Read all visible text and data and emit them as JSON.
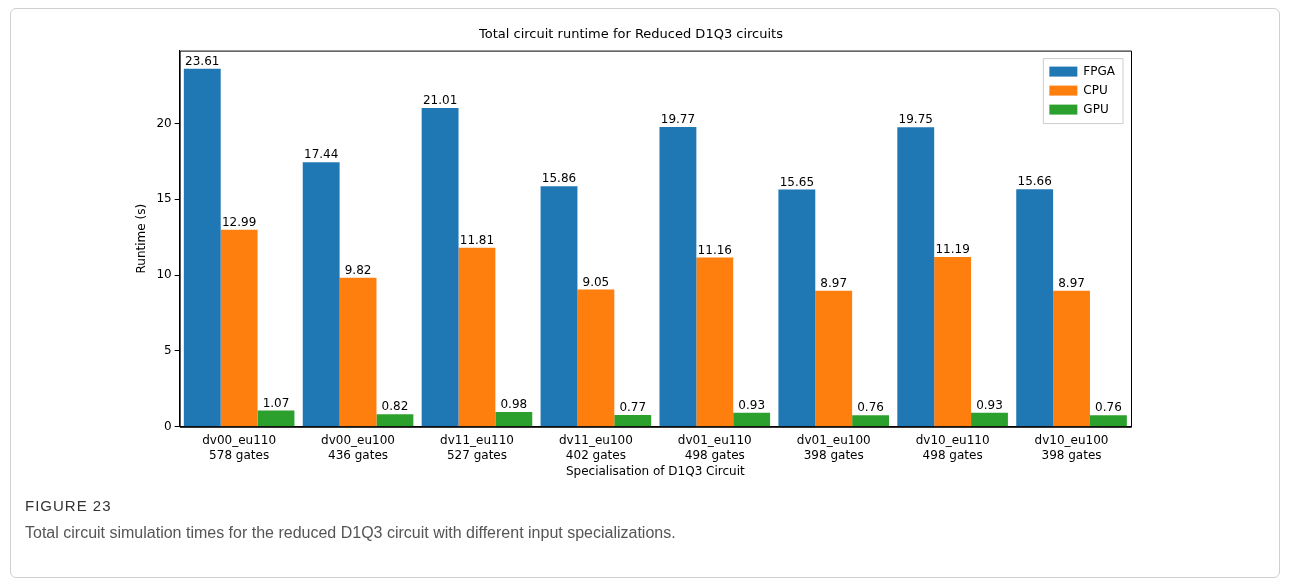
{
  "chart_data": {
    "type": "bar",
    "title": "Total circuit runtime for Reduced D1Q3 circuits",
    "xlabel": "Specialisation of D1Q3 Circuit",
    "ylabel": "Runtime (s)",
    "categories": [
      "dv00_eu110\n578 gates",
      "dv00_eu100\n436 gates",
      "dv11_eu110\n527 gates",
      "dv11_eu100\n402 gates",
      "dv01_eu110\n498 gates",
      "dv01_eu100\n398 gates",
      "dv10_eu110\n498 gates",
      "dv10_eu100\n398 gates"
    ],
    "series": [
      {
        "name": "FPGA",
        "color": "#1f77b4",
        "values": [
          23.61,
          17.44,
          21.01,
          15.86,
          19.77,
          15.65,
          19.75,
          15.66
        ]
      },
      {
        "name": "CPU",
        "color": "#ff7f0e",
        "values": [
          12.99,
          9.82,
          11.81,
          9.05,
          11.16,
          8.97,
          11.19,
          8.97
        ]
      },
      {
        "name": "GPU",
        "color": "#2ca02c",
        "values": [
          1.07,
          0.82,
          0.98,
          0.77,
          0.93,
          0.76,
          0.93,
          0.76
        ]
      }
    ],
    "ylim": [
      0,
      24.8
    ],
    "yticks": [
      0,
      5,
      10,
      15,
      20
    ],
    "grid": false,
    "legend": "top right",
    "data_labels": true,
    "annotations": [
      "FIGURE 23",
      "Total circuit simulation times for the reduced D1Q3 circuit with different input specializations."
    ]
  }
}
